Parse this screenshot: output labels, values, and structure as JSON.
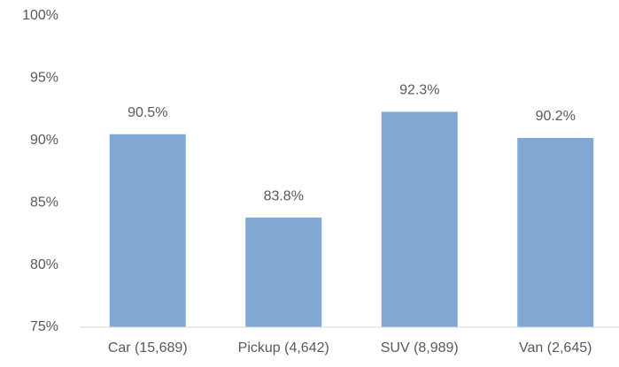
{
  "chart_data": {
    "type": "bar",
    "categories": [
      "Car (15,689)",
      "Pickup (4,642)",
      "SUV (8,989)",
      "Van (2,645)"
    ],
    "values": [
      90.5,
      83.8,
      92.3,
      90.2
    ],
    "value_labels": [
      "90.5%",
      "83.8%",
      "92.3%",
      "90.2%"
    ],
    "color": "#81a7d3",
    "ylim": [
      75,
      100
    ],
    "yticks": [
      {
        "value": 75,
        "label": "75%"
      },
      {
        "value": 80,
        "label": "80%"
      },
      {
        "value": 85,
        "label": "85%"
      },
      {
        "value": 90,
        "label": "90%"
      },
      {
        "value": 95,
        "label": "95%"
      },
      {
        "value": 100,
        "label": "100%"
      }
    ],
    "grid": false
  }
}
